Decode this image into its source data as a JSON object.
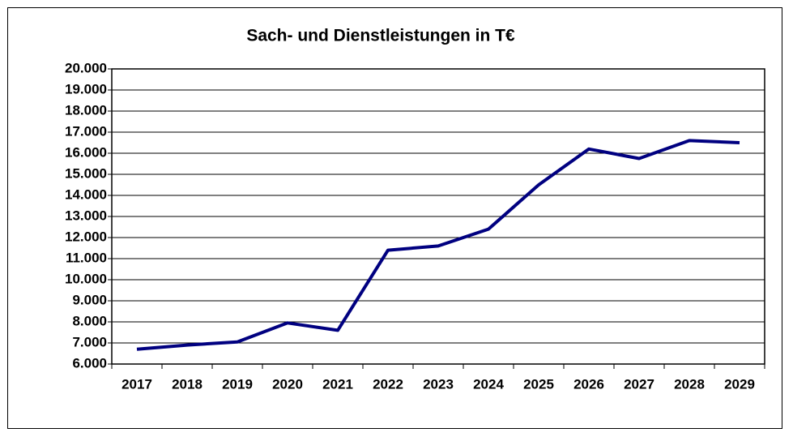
{
  "chart_data": {
    "type": "line",
    "title": "Sach- und Dienstleistungen in T€",
    "categories": [
      "2017",
      "2018",
      "2019",
      "2020",
      "2021",
      "2022",
      "2023",
      "2024",
      "2025",
      "2026",
      "2027",
      "2028",
      "2029"
    ],
    "series": [
      {
        "name": "Sach- und Dienstleistungen",
        "color": "#000080",
        "values": [
          6700,
          6900,
          7050,
          7950,
          7600,
          11400,
          11600,
          12400,
          14500,
          16200,
          15750,
          16600,
          16500
        ]
      }
    ],
    "ylim": [
      6000,
      20000
    ],
    "yticks": [
      {
        "value": 6000,
        "label": "6.000"
      },
      {
        "value": 7000,
        "label": "7.000"
      },
      {
        "value": 8000,
        "label": "8.000"
      },
      {
        "value": 9000,
        "label": "9.000"
      },
      {
        "value": 10000,
        "label": "10.000"
      },
      {
        "value": 11000,
        "label": "11.000"
      },
      {
        "value": 12000,
        "label": "12.000"
      },
      {
        "value": 13000,
        "label": "13.000"
      },
      {
        "value": 14000,
        "label": "14.000"
      },
      {
        "value": 15000,
        "label": "15.000"
      },
      {
        "value": 16000,
        "label": "16.000"
      },
      {
        "value": 17000,
        "label": "17.000"
      },
      {
        "value": 18000,
        "label": "18.000"
      },
      {
        "value": 19000,
        "label": "19.000"
      },
      {
        "value": 20000,
        "label": "20.000"
      }
    ],
    "grid": true
  }
}
